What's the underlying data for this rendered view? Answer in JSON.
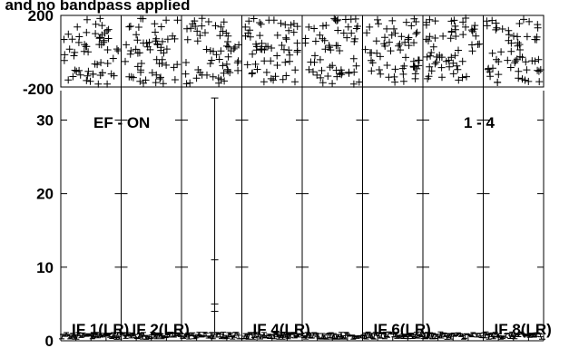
{
  "chart_data": {
    "type": "line",
    "title_fragment": "l and no bandpass applied",
    "source_label": "EF - ON",
    "baseline_label": "1 - 4",
    "panels": 8,
    "phase_panel": {
      "ylim": [
        -200,
        200
      ],
      "tick_labels": [
        "200",
        "-200"
      ],
      "content": "random phase scatter (+ markers) spanning full range in every panel"
    },
    "amplitude_panel": {
      "ylim": [
        0,
        34
      ],
      "y_ticks": [
        0,
        10,
        20,
        30
      ],
      "tick_labels": [
        "0",
        "10",
        "20",
        "30"
      ],
      "noise_level_range": [
        0.2,
        1.2
      ],
      "spike": {
        "panel_index": 2,
        "position": 0.55,
        "value": 33
      }
    },
    "series": [
      {
        "name": "IF 1(LR)",
        "panel_index": 0
      },
      {
        "name": "IF 2(LR)",
        "panel_index": 1
      },
      {
        "name": "IF 4(LR)",
        "panel_index": 3
      },
      {
        "name": "IF 6(LR)",
        "panel_index": 5
      },
      {
        "name": "IF 8(LR)",
        "panel_index": 7
      }
    ],
    "line_color": "#000000"
  }
}
